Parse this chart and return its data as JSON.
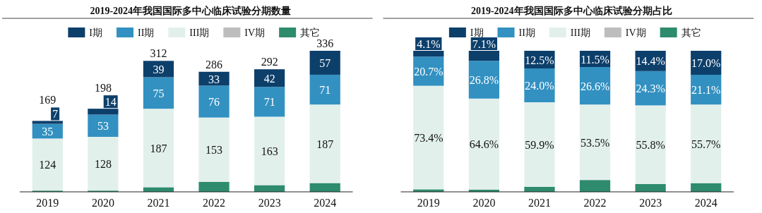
{
  "chart_data": [
    {
      "type": "bar",
      "stacked": true,
      "title": "2019-2024年我国国际多中心临床试验分期数量",
      "legend": "top",
      "categories": [
        "2019",
        "2020",
        "2021",
        "2022",
        "2023",
        "2024"
      ],
      "series": [
        {
          "name": "其它",
          "color": "#2e8b6e",
          "values": [
            3,
            3,
            11,
            24,
            16,
            21
          ],
          "value_labels": [
            null,
            null,
            null,
            null,
            null,
            null
          ]
        },
        {
          "name": "IV期",
          "color": "#bdbdbd",
          "values": [
            null,
            null,
            null,
            null,
            null,
            null
          ],
          "value_labels": [
            null,
            null,
            null,
            null,
            null,
            null
          ]
        },
        {
          "name": "III期",
          "color": "#e2f0ec",
          "values": [
            124,
            128,
            187,
            153,
            163,
            187
          ],
          "value_labels": [
            "124",
            "128",
            "187",
            "153",
            "163",
            "187"
          ]
        },
        {
          "name": "II期",
          "color": "#3291c1",
          "values": [
            35,
            53,
            75,
            76,
            71,
            71
          ],
          "value_labels": [
            "35",
            "53",
            "75",
            "76",
            "71",
            "71"
          ]
        },
        {
          "name": "I期",
          "color": "#0d3f6b",
          "values": [
            7,
            14,
            39,
            33,
            42,
            57
          ],
          "value_labels": [
            "7",
            "14",
            "39",
            "33",
            "42",
            "57"
          ]
        }
      ],
      "totals": [
        "169",
        "198",
        "312",
        "286",
        "292",
        "336"
      ]
    },
    {
      "type": "bar",
      "stacked": true,
      "title": "2019-2024年我国国际多中心临床试验分期占比",
      "legend": "top",
      "categories": [
        "2019",
        "2020",
        "2021",
        "2022",
        "2023",
        "2024"
      ],
      "series": [
        {
          "name": "其它",
          "color": "#2e8b6e",
          "values": [
            1.8,
            1.5,
            3.6,
            8.4,
            5.5,
            6.2
          ],
          "value_labels": [
            null,
            null,
            null,
            null,
            null,
            null
          ]
        },
        {
          "name": "IV期",
          "color": "#bdbdbd",
          "values": [
            null,
            null,
            null,
            null,
            null,
            null
          ],
          "value_labels": [
            null,
            null,
            null,
            null,
            null,
            null
          ]
        },
        {
          "name": "III期",
          "color": "#e2f0ec",
          "values": [
            73.4,
            64.6,
            59.9,
            53.5,
            55.8,
            55.7
          ],
          "value_labels": [
            "73.4%",
            "64.6%",
            "59.9%",
            "53.5%",
            "55.8%",
            "55.7%"
          ]
        },
        {
          "name": "II期",
          "color": "#3291c1",
          "values": [
            20.7,
            26.8,
            24.0,
            26.6,
            24.3,
            21.1
          ],
          "value_labels": [
            "20.7%",
            "26.8%",
            "24.0%",
            "26.6%",
            "24.3%",
            "21.1%"
          ]
        },
        {
          "name": "I期",
          "color": "#0d3f6b",
          "values": [
            4.1,
            7.1,
            12.5,
            11.5,
            14.4,
            17.0
          ],
          "value_labels": [
            "4.1%",
            "7.1%",
            "12.5%",
            "11.5%",
            "14.4%",
            "17.0%"
          ]
        }
      ]
    }
  ]
}
